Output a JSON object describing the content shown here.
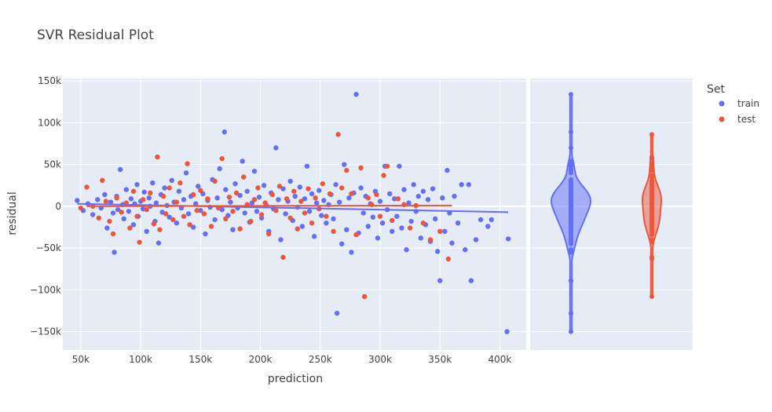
{
  "chart_data": {
    "type": "scatter",
    "title": "SVR Residual Plot",
    "xlabel": "prediction",
    "ylabel": "residual",
    "xlim": [
      35000,
      422000
    ],
    "ylim": [
      -172000,
      153000
    ],
    "x_ticks": [
      50000,
      100000,
      150000,
      200000,
      250000,
      300000,
      350000,
      400000
    ],
    "x_tick_labels": [
      "50k",
      "100k",
      "150k",
      "200k",
      "250k",
      "300k",
      "350k",
      "400k"
    ],
    "y_ticks": [
      -150000,
      -100000,
      -50000,
      0,
      50000,
      100000,
      150000
    ],
    "y_tick_labels": [
      "−150k",
      "−100k",
      "−50k",
      "0",
      "50k",
      "100k",
      "150k"
    ],
    "grid": true,
    "legend": {
      "title": "Set",
      "placement": "top-right",
      "entries": [
        {
          "name": "train",
          "color": "#636efa"
        },
        {
          "name": "test",
          "color": "#ef553b"
        }
      ]
    },
    "series": [
      {
        "name": "train",
        "color": "#636efa",
        "points": [
          [
            47000,
            7000
          ],
          [
            52000,
            -5000
          ],
          [
            56000,
            3000
          ],
          [
            60000,
            -10000
          ],
          [
            64000,
            8000
          ],
          [
            67000,
            -2000
          ],
          [
            70000,
            14000
          ],
          [
            72000,
            -26000
          ],
          [
            75000,
            5000
          ],
          [
            77000,
            -8000
          ],
          [
            78000,
            -55000
          ],
          [
            80000,
            12000
          ],
          [
            81000,
            -4000
          ],
          [
            83000,
            44000
          ],
          [
            85000,
            2000
          ],
          [
            86000,
            -15000
          ],
          [
            88000,
            20000
          ],
          [
            90000,
            -6000
          ],
          [
            92000,
            9000
          ],
          [
            94000,
            -22000
          ],
          [
            95000,
            3000
          ],
          [
            97000,
            26000
          ],
          [
            98000,
            -12000
          ],
          [
            100000,
            6000
          ],
          [
            102000,
            -3000
          ],
          [
            103000,
            17000
          ],
          [
            105000,
            -30000
          ],
          [
            107000,
            10000
          ],
          [
            108000,
            0
          ],
          [
            110000,
            28000
          ],
          [
            112000,
            -18000
          ],
          [
            113000,
            4000
          ],
          [
            115000,
            -44000
          ],
          [
            117000,
            14000
          ],
          [
            118000,
            -7000
          ],
          [
            120000,
            22000
          ],
          [
            122000,
            1000
          ],
          [
            124000,
            -13000
          ],
          [
            126000,
            31000
          ],
          [
            128000,
            5000
          ],
          [
            130000,
            -20000
          ],
          [
            132000,
            18000
          ],
          [
            134000,
            -2000
          ],
          [
            136000,
            8000
          ],
          [
            138000,
            40000
          ],
          [
            140000,
            -9000
          ],
          [
            142000,
            12000
          ],
          [
            144000,
            -25000
          ],
          [
            146000,
            3000
          ],
          [
            148000,
            24000
          ],
          [
            150000,
            -5000
          ],
          [
            152000,
            15000
          ],
          [
            154000,
            -33000
          ],
          [
            156000,
            7000
          ],
          [
            158000,
            -1000
          ],
          [
            160000,
            32000
          ],
          [
            162000,
            -16000
          ],
          [
            164000,
            10000
          ],
          [
            166000,
            45000
          ],
          [
            168000,
            -4000
          ],
          [
            170000,
            89000
          ],
          [
            171000,
            20000
          ],
          [
            173000,
            -11000
          ],
          [
            175000,
            5000
          ],
          [
            177000,
            -28000
          ],
          [
            179000,
            27000
          ],
          [
            181000,
            -2000
          ],
          [
            183000,
            13000
          ],
          [
            185000,
            54000
          ],
          [
            187000,
            -8000
          ],
          [
            189000,
            18000
          ],
          [
            191000,
            -19000
          ],
          [
            193000,
            4000
          ],
          [
            195000,
            42000
          ],
          [
            197000,
            -6000
          ],
          [
            199000,
            11000
          ],
          [
            201000,
            -14000
          ],
          [
            203000,
            25000
          ],
          [
            205000,
            1000
          ],
          [
            207000,
            -30000
          ],
          [
            209000,
            16000
          ],
          [
            211000,
            -3000
          ],
          [
            213000,
            70000
          ],
          [
            215000,
            8000
          ],
          [
            217000,
            -40000
          ],
          [
            219000,
            21000
          ],
          [
            221000,
            -9000
          ],
          [
            223000,
            6000
          ],
          [
            225000,
            30000
          ],
          [
            227000,
            -17000
          ],
          [
            229000,
            12000
          ],
          [
            231000,
            -1000
          ],
          [
            233000,
            23000
          ],
          [
            235000,
            -24000
          ],
          [
            237000,
            9000
          ],
          [
            239000,
            48000
          ],
          [
            241000,
            -6000
          ],
          [
            243000,
            15000
          ],
          [
            245000,
            -36000
          ],
          [
            247000,
            4000
          ],
          [
            249000,
            19000
          ],
          [
            251000,
            -11000
          ],
          [
            253000,
            7000
          ],
          [
            255000,
            -20000
          ],
          [
            257000,
            2000
          ],
          [
            259000,
            14000
          ],
          [
            261000,
            -15000
          ],
          [
            263000,
            26000
          ],
          [
            264000,
            -128000
          ],
          [
            266000,
            5000
          ],
          [
            268000,
            -45000
          ],
          [
            270000,
            50000
          ],
          [
            272000,
            -28000
          ],
          [
            274000,
            10000
          ],
          [
            276000,
            -55000
          ],
          [
            278000,
            16000
          ],
          [
            280000,
            134000
          ],
          [
            282000,
            -32000
          ],
          [
            284000,
            22000
          ],
          [
            286000,
            -8000
          ],
          [
            288000,
            12000
          ],
          [
            290000,
            -24000
          ],
          [
            292000,
            3000
          ],
          [
            294000,
            -13000
          ],
          [
            296000,
            18000
          ],
          [
            298000,
            -38000
          ],
          [
            300000,
            6000
          ],
          [
            302000,
            -20000
          ],
          [
            304000,
            48000
          ],
          [
            306000,
            -4000
          ],
          [
            308000,
            15000
          ],
          [
            310000,
            -30000
          ],
          [
            312000,
            9000
          ],
          [
            314000,
            -12000
          ],
          [
            316000,
            48000
          ],
          [
            318000,
            -26000
          ],
          [
            320000,
            20000
          ],
          [
            322000,
            -52000
          ],
          [
            324000,
            4000
          ],
          [
            326000,
            -18000
          ],
          [
            328000,
            26000
          ],
          [
            330000,
            -6000
          ],
          [
            332000,
            12000
          ],
          [
            334000,
            -38000
          ],
          [
            336000,
            18000
          ],
          [
            338000,
            -22000
          ],
          [
            340000,
            8000
          ],
          [
            342000,
            -42000
          ],
          [
            344000,
            21000
          ],
          [
            346000,
            -15000
          ],
          [
            348000,
            -54000
          ],
          [
            350000,
            -89000
          ],
          [
            352000,
            10000
          ],
          [
            354000,
            -30000
          ],
          [
            356000,
            43000
          ],
          [
            358000,
            -8000
          ],
          [
            360000,
            -44000
          ],
          [
            362000,
            12000
          ],
          [
            365000,
            -20000
          ],
          [
            368000,
            26000
          ],
          [
            371000,
            -52000
          ],
          [
            374000,
            26000
          ],
          [
            376000,
            -89000
          ],
          [
            380000,
            -40000
          ],
          [
            384000,
            -16000
          ],
          [
            390000,
            -24000
          ],
          [
            393000,
            -16000
          ],
          [
            406000,
            -150000
          ],
          [
            407000,
            -39000
          ]
        ],
        "trend": [
          [
            47000,
            3000
          ],
          [
            407000,
            -7000
          ]
        ]
      },
      {
        "name": "test",
        "color": "#ef553b",
        "points": [
          [
            50000,
            -2000
          ],
          [
            55000,
            23000
          ],
          [
            60000,
            0
          ],
          [
            65000,
            -14000
          ],
          [
            68000,
            31000
          ],
          [
            71000,
            6000
          ],
          [
            74000,
            -18000
          ],
          [
            77000,
            -33000
          ],
          [
            80000,
            10000
          ],
          [
            84000,
            -7000
          ],
          [
            88000,
            4000
          ],
          [
            91000,
            -26000
          ],
          [
            94000,
            18000
          ],
          [
            97000,
            -12000
          ],
          [
            99000,
            -43000
          ],
          [
            102000,
            8000
          ],
          [
            105000,
            -4000
          ],
          [
            108000,
            16000
          ],
          [
            111000,
            -21000
          ],
          [
            114000,
            59000
          ],
          [
            116000,
            -28000
          ],
          [
            119000,
            12000
          ],
          [
            121000,
            -9000
          ],
          [
            124000,
            22000
          ],
          [
            127000,
            -16000
          ],
          [
            130000,
            5000
          ],
          [
            133000,
            28000
          ],
          [
            136000,
            -12000
          ],
          [
            139000,
            51000
          ],
          [
            141000,
            -22000
          ],
          [
            144000,
            14000
          ],
          [
            147000,
            -5000
          ],
          [
            150000,
            19000
          ],
          [
            153000,
            -9000
          ],
          [
            156000,
            9000
          ],
          [
            159000,
            -24000
          ],
          [
            162000,
            30000
          ],
          [
            165000,
            -2000
          ],
          [
            168000,
            57000
          ],
          [
            171000,
            -15000
          ],
          [
            174000,
            11000
          ],
          [
            177000,
            -6000
          ],
          [
            180000,
            16000
          ],
          [
            183000,
            -27000
          ],
          [
            186000,
            35000
          ],
          [
            189000,
            2000
          ],
          [
            192000,
            -18000
          ],
          [
            195000,
            8000
          ],
          [
            198000,
            22000
          ],
          [
            201000,
            -10000
          ],
          [
            204000,
            4000
          ],
          [
            207000,
            -33000
          ],
          [
            210000,
            14000
          ],
          [
            213000,
            -5000
          ],
          [
            216000,
            24000
          ],
          [
            219000,
            -61000
          ],
          [
            222000,
            9000
          ],
          [
            225000,
            -14000
          ],
          [
            228000,
            18000
          ],
          [
            231000,
            -27000
          ],
          [
            234000,
            6000
          ],
          [
            237000,
            -8000
          ],
          [
            240000,
            21000
          ],
          [
            243000,
            -20000
          ],
          [
            246000,
            10000
          ],
          [
            249000,
            -3000
          ],
          [
            252000,
            27000
          ],
          [
            255000,
            -12000
          ],
          [
            258000,
            15000
          ],
          [
            261000,
            -30000
          ],
          [
            265000,
            86000
          ],
          [
            268000,
            22000
          ],
          [
            272000,
            43000
          ],
          [
            276000,
            15000
          ],
          [
            280000,
            -34000
          ],
          [
            284000,
            46000
          ],
          [
            287000,
            -108000
          ],
          [
            290000,
            10000
          ],
          [
            293000,
            2000
          ],
          [
            297000,
            14000
          ],
          [
            300000,
            -12000
          ],
          [
            303000,
            37000
          ],
          [
            306000,
            48000
          ],
          [
            310000,
            -17000
          ],
          [
            315000,
            9000
          ],
          [
            320000,
            2000
          ],
          [
            325000,
            -26000
          ],
          [
            330000,
            1000
          ],
          [
            336000,
            -20000
          ],
          [
            342000,
            -40000
          ],
          [
            350000,
            -30000
          ],
          [
            357000,
            -63000
          ]
        ],
        "trend": [
          [
            55000,
            0
          ],
          [
            360000,
            1000
          ]
        ]
      }
    ],
    "marginal": {
      "type": "violin",
      "axis": "y",
      "series": [
        "train",
        "test"
      ]
    }
  }
}
